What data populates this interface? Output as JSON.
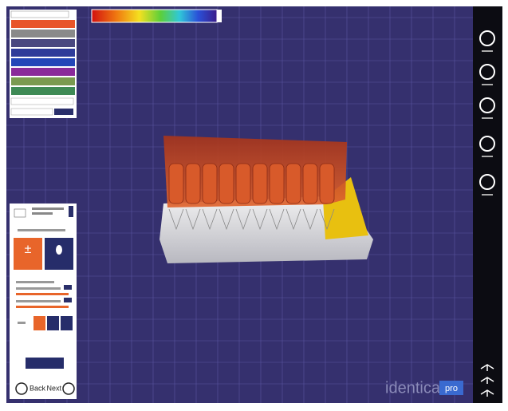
{
  "nav": {
    "back": "Back",
    "next": "Next"
  },
  "brand": {
    "name": "identica",
    "badge": "pro"
  }
}
